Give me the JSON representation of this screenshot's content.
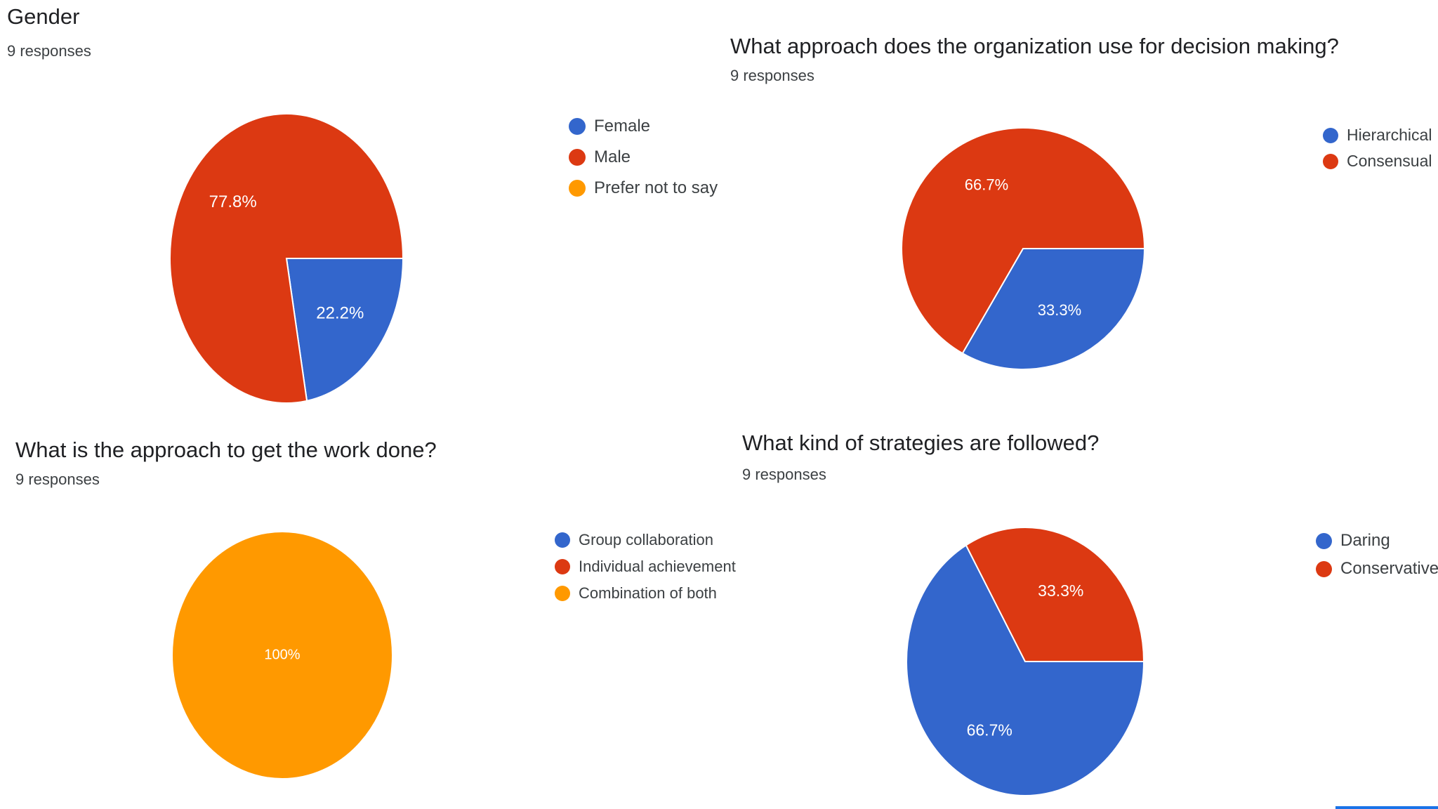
{
  "colors": {
    "blue": "#3366cc",
    "red": "#dc3912",
    "orange": "#ff9900"
  },
  "charts": [
    {
      "title": "Gender",
      "subtitle": "9 responses",
      "legend": [
        {
          "label": "Female",
          "color": "#3366cc"
        },
        {
          "label": "Male",
          "color": "#dc3912"
        },
        {
          "label": "Prefer not to say",
          "color": "#ff9900"
        }
      ]
    },
    {
      "title": "What approach does the organization use for decision making?",
      "subtitle": "9 responses",
      "legend": [
        {
          "label": "Hierarchical",
          "color": "#3366cc"
        },
        {
          "label": "Consensual",
          "color": "#dc3912"
        }
      ]
    },
    {
      "title": "What is the approach to get the work done?",
      "subtitle": "9 responses",
      "legend": [
        {
          "label": "Group collaboration",
          "color": "#3366cc"
        },
        {
          "label": "Individual achievement",
          "color": "#dc3912"
        },
        {
          "label": "Combination of both",
          "color": "#ff9900"
        }
      ]
    },
    {
      "title": "What kind of strategies are followed?",
      "subtitle": "9 responses",
      "legend": [
        {
          "label": "Daring",
          "color": "#3366cc"
        },
        {
          "label": "Conservative",
          "color": "#dc3912"
        }
      ]
    }
  ],
  "chart_data": [
    {
      "type": "pie",
      "title": "Gender",
      "subtitle": "9 responses",
      "legend_position": "right",
      "slices": [
        {
          "name": "Female",
          "percent": 22.2,
          "label": "22.2%",
          "color": "#3366cc"
        },
        {
          "name": "Male",
          "percent": 77.8,
          "label": "77.8%",
          "color": "#dc3912"
        },
        {
          "name": "Prefer not to say",
          "percent": 0,
          "label": "",
          "color": "#ff9900"
        }
      ]
    },
    {
      "type": "pie",
      "title": "What approach does the organization use for decision making?",
      "subtitle": "9 responses",
      "legend_position": "right",
      "slices": [
        {
          "name": "Hierarchical",
          "percent": 33.3,
          "label": "33.3%",
          "color": "#3366cc"
        },
        {
          "name": "Consensual",
          "percent": 66.7,
          "label": "66.7%",
          "color": "#dc3912"
        }
      ]
    },
    {
      "type": "pie",
      "title": "What is the approach to get the work done?",
      "subtitle": "9 responses",
      "legend_position": "right",
      "slices": [
        {
          "name": "Group collaboration",
          "percent": 0,
          "label": "",
          "color": "#3366cc"
        },
        {
          "name": "Individual achievement",
          "percent": 0,
          "label": "",
          "color": "#dc3912"
        },
        {
          "name": "Combination of both",
          "percent": 100,
          "label": "100%",
          "color": "#ff9900"
        }
      ]
    },
    {
      "type": "pie",
      "title": "What kind of strategies are followed?",
      "subtitle": "9 responses",
      "legend_position": "right",
      "slices": [
        {
          "name": "Daring",
          "percent": 66.7,
          "label": "66.7%",
          "color": "#3366cc"
        },
        {
          "name": "Conservative",
          "percent": 33.3,
          "label": "33.3%",
          "color": "#dc3912"
        }
      ]
    }
  ]
}
